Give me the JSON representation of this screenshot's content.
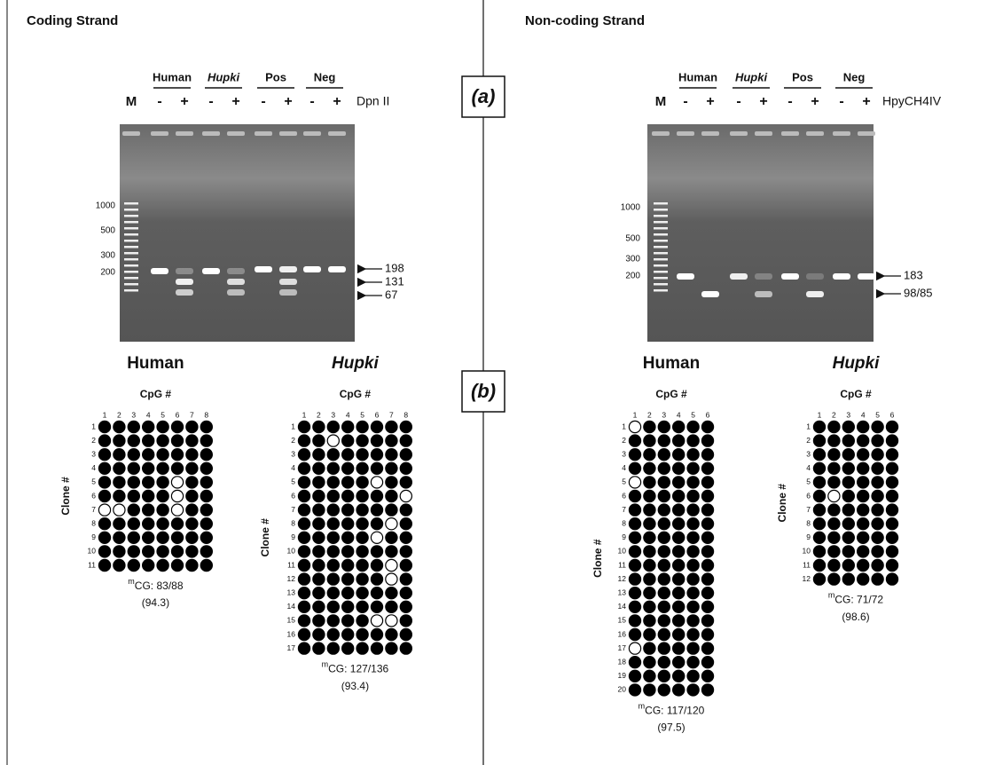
{
  "panel_labels": [
    "(a)",
    "(b)"
  ],
  "coding_strand": {
    "title": "Coding Strand",
    "gel": {
      "marker": "M",
      "groups": [
        {
          "name": "Human",
          "italic": false
        },
        {
          "name": "Hupki",
          "italic": true
        },
        {
          "name": "Pos",
          "italic": false
        },
        {
          "name": "Neg",
          "italic": false
        }
      ],
      "lanes": [
        "-",
        "+",
        "-",
        "+",
        "-",
        "+",
        "-",
        "+"
      ],
      "enzyme": "Dpn II",
      "ladder": [
        "1000",
        "500",
        "300",
        "200"
      ],
      "fragments": [
        "198",
        "131",
        "67"
      ]
    },
    "panels": [
      {
        "title": "Human",
        "italic": false,
        "cpg_header": "CpG #",
        "clone_header": "Clone #",
        "cpg_labels": [
          1,
          2,
          3,
          4,
          5,
          6,
          7,
          8
        ],
        "clone_labels": [
          1,
          2,
          3,
          4,
          5,
          6,
          7,
          8,
          9,
          10,
          11
        ],
        "methylation": [
          [
            1,
            1,
            1,
            1,
            1,
            1,
            1,
            1
          ],
          [
            1,
            1,
            1,
            1,
            1,
            1,
            1,
            1
          ],
          [
            1,
            1,
            1,
            1,
            1,
            1,
            1,
            1
          ],
          [
            1,
            1,
            1,
            1,
            1,
            1,
            1,
            1
          ],
          [
            1,
            1,
            1,
            1,
            1,
            0,
            1,
            1
          ],
          [
            1,
            1,
            1,
            1,
            1,
            0,
            1,
            1
          ],
          [
            0,
            0,
            1,
            1,
            1,
            0,
            1,
            1
          ],
          [
            1,
            1,
            1,
            1,
            1,
            1,
            1,
            1
          ],
          [
            1,
            1,
            1,
            1,
            1,
            1,
            1,
            1
          ],
          [
            1,
            1,
            1,
            1,
            1,
            1,
            1,
            1
          ],
          [
            1,
            1,
            1,
            1,
            1,
            1,
            1,
            1
          ]
        ],
        "annotation": {
          "superscript": "m",
          "text": "CG: 83/88",
          "percent": "(94.3)"
        }
      },
      {
        "title": "Hupki",
        "italic": true,
        "cpg_header": "CpG #",
        "clone_header": "Clone #",
        "cpg_labels": [
          1,
          2,
          3,
          4,
          5,
          6,
          7,
          8
        ],
        "clone_labels": [
          1,
          2,
          3,
          4,
          5,
          6,
          7,
          8,
          9,
          10,
          11,
          12,
          13,
          14,
          15,
          16,
          17
        ],
        "methylation": [
          [
            1,
            1,
            1,
            1,
            1,
            1,
            1,
            1
          ],
          [
            1,
            1,
            0,
            1,
            1,
            1,
            1,
            1
          ],
          [
            1,
            1,
            1,
            1,
            1,
            1,
            1,
            1
          ],
          [
            1,
            1,
            1,
            1,
            1,
            1,
            1,
            1
          ],
          [
            1,
            1,
            1,
            1,
            1,
            0,
            1,
            1
          ],
          [
            1,
            1,
            1,
            1,
            1,
            1,
            1,
            0
          ],
          [
            1,
            1,
            1,
            1,
            1,
            1,
            1,
            1
          ],
          [
            1,
            1,
            1,
            1,
            1,
            1,
            0,
            1
          ],
          [
            1,
            1,
            1,
            1,
            1,
            0,
            1,
            1
          ],
          [
            1,
            1,
            1,
            1,
            1,
            1,
            1,
            1
          ],
          [
            1,
            1,
            1,
            1,
            1,
            1,
            0,
            1
          ],
          [
            1,
            1,
            1,
            1,
            1,
            1,
            0,
            1
          ],
          [
            1,
            1,
            1,
            1,
            1,
            1,
            1,
            1
          ],
          [
            1,
            1,
            1,
            1,
            1,
            1,
            1,
            1
          ],
          [
            1,
            1,
            1,
            1,
            1,
            0,
            0,
            1
          ],
          [
            1,
            1,
            1,
            1,
            1,
            1,
            1,
            1
          ],
          [
            1,
            1,
            1,
            1,
            1,
            1,
            1,
            1
          ]
        ],
        "annotation": {
          "superscript": "m",
          "text": "CG: 127/136",
          "percent": "(93.4)"
        }
      }
    ]
  },
  "noncoding_strand": {
    "title": "Non-coding Strand",
    "gel": {
      "marker": "M",
      "groups": [
        {
          "name": "Human",
          "italic": false
        },
        {
          "name": "Hupki",
          "italic": true
        },
        {
          "name": "Pos",
          "italic": false
        },
        {
          "name": "Neg",
          "italic": false
        }
      ],
      "lanes": [
        "-",
        "+",
        "-",
        "+",
        "-",
        "+",
        "-",
        "+"
      ],
      "enzyme": "HpyCH4IV",
      "ladder": [
        "1000",
        "500",
        "300",
        "200"
      ],
      "fragments": [
        "183",
        "98/85"
      ]
    },
    "panels": [
      {
        "title": "Human",
        "italic": false,
        "cpg_header": "CpG #",
        "clone_header": "Clone #",
        "cpg_labels": [
          1,
          2,
          3,
          4,
          5,
          6
        ],
        "clone_labels": [
          1,
          2,
          3,
          4,
          5,
          6,
          7,
          8,
          9,
          10,
          11,
          12,
          13,
          14,
          15,
          16,
          17,
          18,
          19,
          20
        ],
        "methylation": [
          [
            0,
            1,
            1,
            1,
            1,
            1
          ],
          [
            1,
            1,
            1,
            1,
            1,
            1
          ],
          [
            1,
            1,
            1,
            1,
            1,
            1
          ],
          [
            1,
            1,
            1,
            1,
            1,
            1
          ],
          [
            0,
            1,
            1,
            1,
            1,
            1
          ],
          [
            1,
            1,
            1,
            1,
            1,
            1
          ],
          [
            1,
            1,
            1,
            1,
            1,
            1
          ],
          [
            1,
            1,
            1,
            1,
            1,
            1
          ],
          [
            1,
            1,
            1,
            1,
            1,
            1
          ],
          [
            1,
            1,
            1,
            1,
            1,
            1
          ],
          [
            1,
            1,
            1,
            1,
            1,
            1
          ],
          [
            1,
            1,
            1,
            1,
            1,
            1
          ],
          [
            1,
            1,
            1,
            1,
            1,
            1
          ],
          [
            1,
            1,
            1,
            1,
            1,
            1
          ],
          [
            1,
            1,
            1,
            1,
            1,
            1
          ],
          [
            1,
            1,
            1,
            1,
            1,
            1
          ],
          [
            0,
            1,
            1,
            1,
            1,
            1
          ],
          [
            1,
            1,
            1,
            1,
            1,
            1
          ],
          [
            1,
            1,
            1,
            1,
            1,
            1
          ],
          [
            1,
            1,
            1,
            1,
            1,
            1
          ]
        ],
        "annotation": {
          "superscript": "m",
          "text": "CG: 117/120",
          "percent": "(97.5)"
        }
      },
      {
        "title": "Hupki",
        "italic": true,
        "cpg_header": "CpG #",
        "clone_header": "Clone #",
        "cpg_labels": [
          1,
          2,
          3,
          4,
          5,
          6
        ],
        "clone_labels": [
          1,
          2,
          3,
          4,
          5,
          6,
          7,
          8,
          9,
          10,
          11,
          12
        ],
        "methylation": [
          [
            1,
            1,
            1,
            1,
            1,
            1
          ],
          [
            1,
            1,
            1,
            1,
            1,
            1
          ],
          [
            1,
            1,
            1,
            1,
            1,
            1
          ],
          [
            1,
            1,
            1,
            1,
            1,
            1
          ],
          [
            1,
            1,
            1,
            1,
            1,
            1
          ],
          [
            1,
            0,
            1,
            1,
            1,
            1
          ],
          [
            1,
            1,
            1,
            1,
            1,
            1
          ],
          [
            1,
            1,
            1,
            1,
            1,
            1
          ],
          [
            1,
            1,
            1,
            1,
            1,
            1
          ],
          [
            1,
            1,
            1,
            1,
            1,
            1
          ],
          [
            1,
            1,
            1,
            1,
            1,
            1
          ],
          [
            1,
            1,
            1,
            1,
            1,
            1
          ]
        ],
        "annotation": {
          "superscript": "m",
          "text": "CG: 71/72",
          "percent": "(98.6)"
        }
      }
    ]
  }
}
